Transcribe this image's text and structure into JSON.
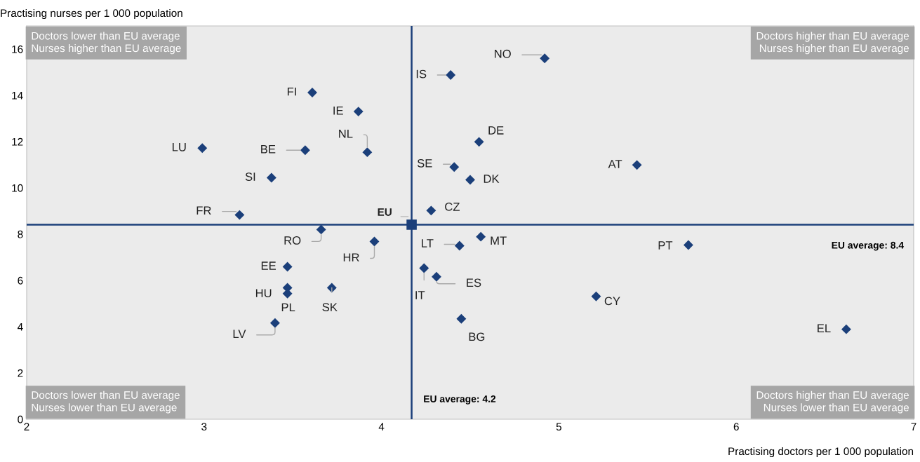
{
  "chart_data": {
    "type": "scatter",
    "xlabel": "Practising doctors per 1 000 population",
    "ylabel": "Practising nurses per 1 000 population",
    "xlim": [
      2,
      7
    ],
    "xticks": [
      2,
      3,
      4,
      5,
      6,
      7
    ],
    "ylim": [
      0,
      17
    ],
    "yticks": [
      0,
      2,
      4,
      6,
      8,
      10,
      12,
      14,
      16
    ],
    "grid": false,
    "legend": false,
    "series": [
      {
        "color": "#1b3f7a",
        "marker": "diamond",
        "x": [
          4.92,
          4.39,
          3.61,
          3.87,
          4.55,
          2.99,
          3.57,
          3.92,
          5.44,
          4.41,
          4.5,
          3.38,
          4.28,
          3.2,
          3.66,
          4.56,
          3.96,
          4.44,
          5.73,
          3.47,
          4.24,
          4.31,
          3.47,
          3.72,
          3.47,
          5.21,
          4.45,
          3.4,
          6.62
        ],
        "values": [
          15.6,
          14.88,
          14.12,
          13.3,
          11.99,
          11.72,
          11.63,
          11.54,
          10.99,
          10.9,
          10.35,
          10.44,
          9.02,
          8.83,
          8.2,
          7.89,
          7.68,
          7.5,
          7.53,
          6.59,
          6.53,
          6.16,
          5.68,
          5.68,
          5.43,
          5.31,
          4.34,
          4.16,
          3.89
        ]
      },
      {
        "name": "EU",
        "color": "#1b3f7a",
        "marker": "square",
        "x": [
          4.17
        ],
        "values": [
          8.41
        ]
      }
    ],
    "ref_lines": [
      {
        "axis": "y",
        "value": 8.41,
        "label": "EU average: 8.4",
        "color": "#1b3f7a"
      },
      {
        "axis": "x",
        "value": 4.17,
        "label": "EU average: 4.2",
        "color": "#1b3f7a"
      }
    ],
    "annotations": [
      "Doctors lower than EU average\nNurses higher than EU average",
      "Doctors higher than EU average\nNurses higher than EU average",
      "Doctors lower than EU average\nNurses lower than EU average",
      "Doctors higher than EU average\nNurses lower than EU average",
      {
        "text": "NO",
        "x": 4.92,
        "y": 15.6
      },
      {
        "text": "IS",
        "x": 4.39,
        "y": 14.88
      },
      {
        "text": "FI",
        "x": 3.61,
        "y": 14.12
      },
      {
        "text": "IE",
        "x": 3.87,
        "y": 13.3
      },
      {
        "text": "DE",
        "x": 4.55,
        "y": 11.99
      },
      {
        "text": "LU",
        "x": 2.99,
        "y": 11.72
      },
      {
        "text": "BE",
        "x": 3.57,
        "y": 11.63
      },
      {
        "text": "NL",
        "x": 3.92,
        "y": 11.54
      },
      {
        "text": "AT",
        "x": 5.44,
        "y": 10.99
      },
      {
        "text": "SE",
        "x": 4.41,
        "y": 10.9
      },
      {
        "text": "DK",
        "x": 4.5,
        "y": 10.35
      },
      {
        "text": "SI",
        "x": 3.38,
        "y": 10.44
      },
      {
        "text": "CZ",
        "x": 4.28,
        "y": 9.02
      },
      {
        "text": "FR",
        "x": 3.2,
        "y": 8.83
      },
      {
        "text": "RO",
        "x": 3.66,
        "y": 8.2
      },
      {
        "text": "MT",
        "x": 4.56,
        "y": 7.89
      },
      {
        "text": "HR",
        "x": 3.96,
        "y": 7.68
      },
      {
        "text": "LT",
        "x": 4.44,
        "y": 7.5
      },
      {
        "text": "PT",
        "x": 5.73,
        "y": 7.53
      },
      {
        "text": "EE",
        "x": 3.47,
        "y": 6.59
      },
      {
        "text": "IT",
        "x": 4.24,
        "y": 6.53
      },
      {
        "text": "ES",
        "x": 4.31,
        "y": 6.16
      },
      {
        "text": "HU",
        "x": 3.47,
        "y": 5.68
      },
      {
        "text": "SK",
        "x": 3.72,
        "y": 5.68
      },
      {
        "text": "PL",
        "x": 3.47,
        "y": 5.43
      },
      {
        "text": "CY",
        "x": 5.21,
        "y": 5.31
      },
      {
        "text": "BG",
        "x": 4.45,
        "y": 4.34
      },
      {
        "text": "LV",
        "x": 3.4,
        "y": 4.16
      },
      {
        "text": "EL",
        "x": 6.62,
        "y": 3.89
      }
    ]
  }
}
